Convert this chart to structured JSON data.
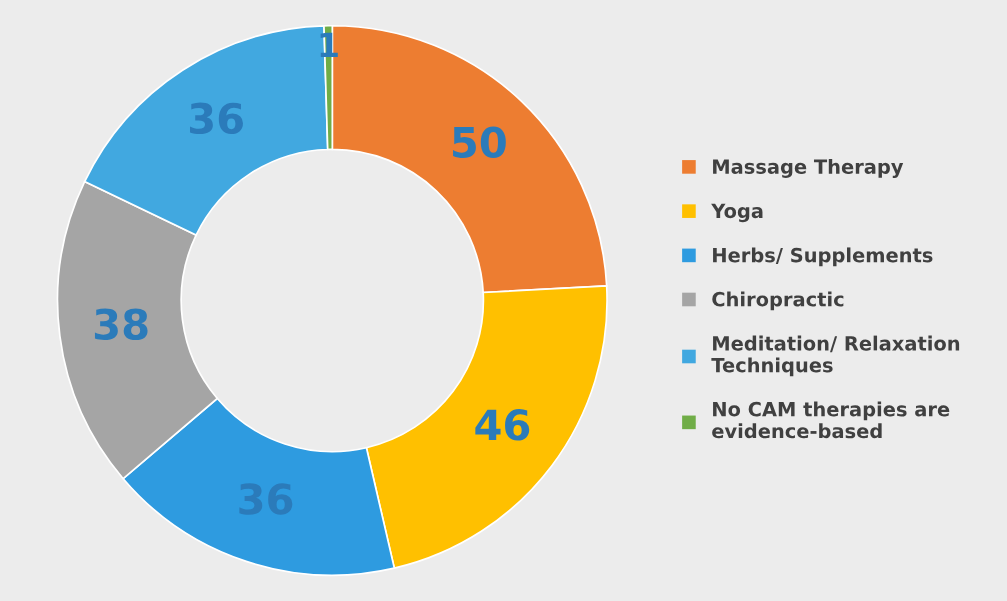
{
  "chart_data": {
    "type": "donut",
    "categories": [
      "Massage Therapy",
      "Yoga",
      "Herbs/ Supplements",
      "Chiropractic",
      "Meditation/ Relaxation Techniques",
      "No CAM therapies are evidence-based"
    ],
    "values": [
      50,
      46,
      36,
      38,
      36,
      1
    ],
    "colors": [
      "#ed7d31",
      "#ffc000",
      "#2e9be0",
      "#a5a5a5",
      "#41a8e0",
      "#70ad47"
    ],
    "data_labels": true,
    "legend": "right"
  }
}
